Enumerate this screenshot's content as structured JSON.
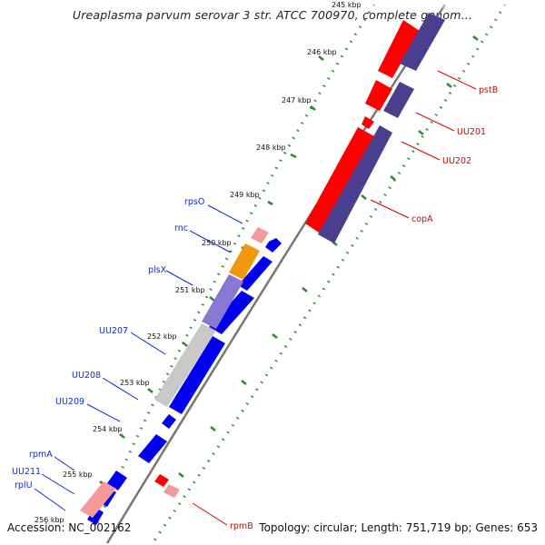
{
  "title": "Ureaplasma parvum serovar 3 str. ATCC 700970, complete genom...",
  "footer": {
    "accession": "Accession: NC_002162",
    "stats": "Topology: circular; Length: 751,719 bp; Genes: 653"
  },
  "colors": {
    "forward_gene": "#ff0000",
    "forward_gene_light": "#f59a9a",
    "reverse_gene": "#0000ee",
    "orf_dark": "#4a3f8f",
    "orf_light": "#8878d2",
    "orange_feature": "#f2980f",
    "grey_feature": "#c8c8c8",
    "tick_green": "#2b8a2b",
    "backbone": "#777777"
  },
  "scale_labels": [
    "245 kbp",
    "246 kbp",
    "247 kbp",
    "248 kbp",
    "249 kbp",
    "250 kbp",
    "251 kbp",
    "252 kbp",
    "253 kbp",
    "254 kbp",
    "255 kbp",
    "256 kbp"
  ],
  "gene_labels_left": [
    "rpsO",
    "rnc",
    "plsX",
    "UU207",
    "UU208",
    "UU209",
    "rpmA",
    "UU211",
    "rplU"
  ],
  "gene_labels_right": [
    "pstB",
    "UU201",
    "UU202",
    "copA",
    "rpmB"
  ]
}
